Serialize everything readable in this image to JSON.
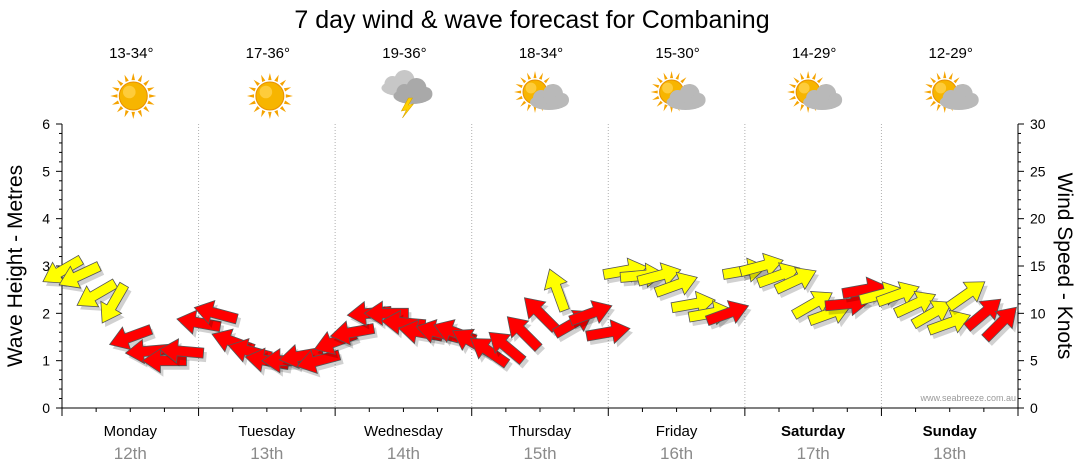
{
  "chart_data": {
    "type": "line",
    "title": "7 day wind & wave forecast for Combaning",
    "ylabel_left": "Wave Height - Metres",
    "ylabel_right": "Wind Speed - Knots",
    "ylim_left": [
      0,
      6
    ],
    "ylim_right": [
      0,
      30
    ],
    "yticks_left": [
      "0",
      "1",
      "2",
      "3",
      "4",
      "5",
      "6"
    ],
    "yticks_right": [
      "0",
      "5",
      "10",
      "15",
      "20",
      "25",
      "30"
    ],
    "days": [
      {
        "day": "Monday",
        "date": "12th",
        "temp": "13-34°",
        "icon": "sun-icon",
        "bold": false
      },
      {
        "day": "Tuesday",
        "date": "13th",
        "temp": "17-36°",
        "icon": "sun-icon",
        "bold": false
      },
      {
        "day": "Wednesday",
        "date": "14th",
        "temp": "19-36°",
        "icon": "storm-icon",
        "bold": false
      },
      {
        "day": "Thursday",
        "date": "15th",
        "temp": "18-34°",
        "icon": "partly-cloudy-icon",
        "bold": false
      },
      {
        "day": "Friday",
        "date": "16th",
        "temp": "15-30°",
        "icon": "partly-cloudy-icon",
        "bold": false
      },
      {
        "day": "Saturday",
        "date": "17th",
        "temp": "14-29°",
        "icon": "partly-cloudy-icon",
        "bold": true
      },
      {
        "day": "Sunday",
        "date": "18th",
        "temp": "12-29°",
        "icon": "partly-cloudy-icon",
        "bold": true
      }
    ],
    "series": [
      {
        "name": "Wind",
        "units": "knots",
        "x_hours": [
          0,
          3,
          6,
          9,
          12,
          15,
          18,
          21,
          24,
          27,
          30,
          33,
          36,
          39,
          42,
          45,
          48,
          51,
          54,
          57,
          60,
          63,
          66,
          69,
          72,
          75,
          78,
          81,
          84,
          87,
          90,
          93,
          96,
          99,
          102,
          105,
          108,
          111,
          114,
          117,
          120,
          123,
          126,
          129,
          132,
          135,
          138,
          141,
          144,
          147,
          150,
          153,
          156,
          159,
          162,
          165
        ],
        "values": [
          14.5,
          14,
          12,
          11,
          7.5,
          6,
          5,
          6,
          9,
          10,
          7,
          6,
          5,
          5,
          5.5,
          5,
          7,
          8,
          10,
          10,
          9,
          8,
          8,
          8,
          7,
          6,
          6.5,
          8,
          10,
          12.5,
          9,
          10,
          8,
          14.5,
          14,
          14,
          13,
          11,
          10,
          10,
          14.5,
          15,
          14,
          13.5,
          11,
          10,
          11,
          12.5,
          12,
          12,
          11,
          10,
          9,
          12,
          10,
          9
        ],
        "direction_deg": [
          300,
          295,
          300,
          330,
          290,
          275,
          270,
          265,
          260,
          255,
          250,
          255,
          260,
          270,
          280,
          285,
          290,
          280,
          275,
          270,
          265,
          260,
          255,
          250,
          240,
          235,
          230,
          225,
          225,
          200,
          120,
          110,
          100,
          100,
          95,
          105,
          110,
          100,
          100,
          110,
          100,
          105,
          110,
          115,
          120,
          110,
          95,
          100,
          105,
          110,
          115,
          120,
          110,
          125,
          130,
          135
        ],
        "speed_color": [
          "yellow",
          "yellow",
          "yellow",
          "yellow",
          "red",
          "red",
          "red",
          "red",
          "red",
          "red",
          "red",
          "red",
          "red",
          "red",
          "red",
          "red",
          "red",
          "red",
          "red",
          "red",
          "red",
          "red",
          "red",
          "red",
          "red",
          "red",
          "red",
          "red",
          "red",
          "yellow",
          "red",
          "red",
          "red",
          "yellow",
          "yellow",
          "yellow",
          "yellow",
          "yellow",
          "yellow",
          "red",
          "yellow",
          "yellow",
          "yellow",
          "yellow",
          "yellow",
          "yellow",
          "red",
          "red",
          "yellow",
          "yellow",
          "yellow",
          "yellow",
          "yellow",
          "yellow",
          "red",
          "red"
        ]
      }
    ]
  },
  "colors": {
    "calm": "#ffff00",
    "strong": "#ff0000"
  },
  "credit": "www.seabreeze.com.au"
}
